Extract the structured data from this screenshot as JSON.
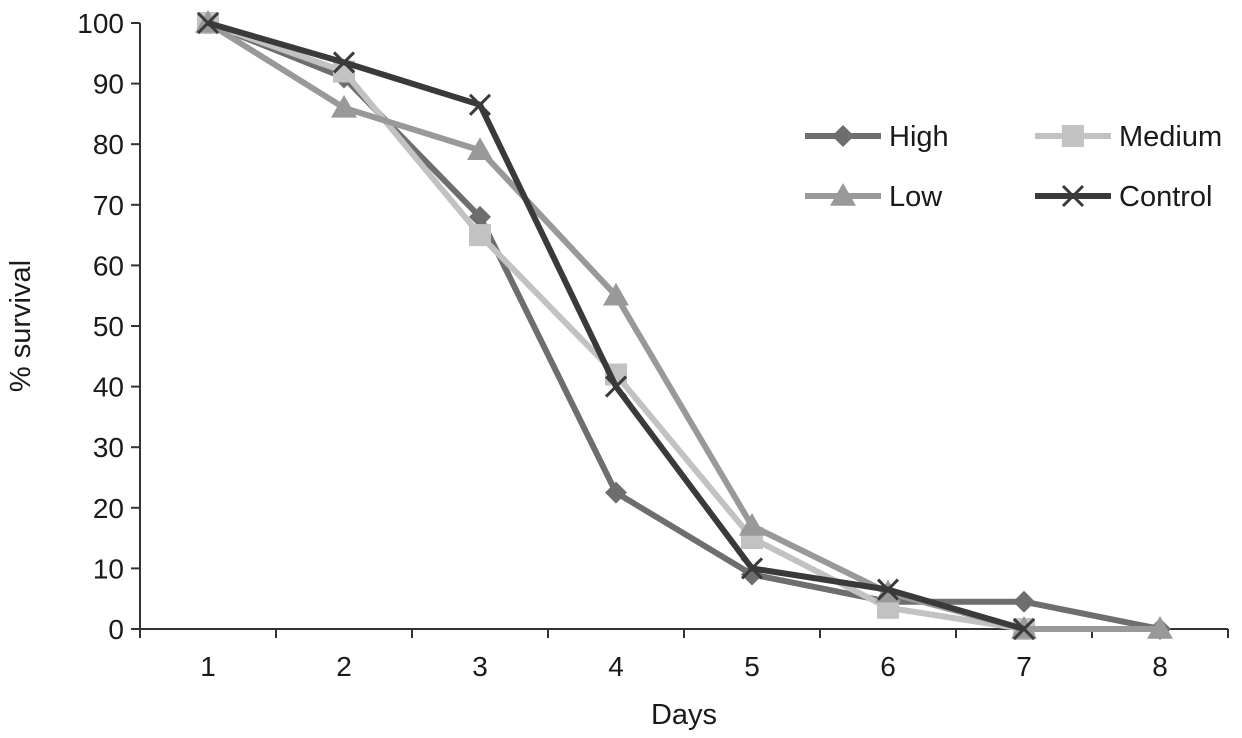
{
  "chart_data": {
    "type": "line",
    "title": "",
    "xlabel": "Days",
    "ylabel": "% survival",
    "x": [
      1,
      2,
      3,
      4,
      5,
      6,
      7,
      8
    ],
    "ylim": [
      0,
      100
    ],
    "yticks": [
      0,
      10,
      20,
      30,
      40,
      50,
      60,
      70,
      80,
      90,
      100
    ],
    "grid": false,
    "legend_position": "top-right",
    "series": [
      {
        "name": "High",
        "values": [
          100,
          91,
          68,
          22.5,
          9,
          4.5,
          4.5,
          0
        ],
        "color": "#6e6e6e",
        "marker": "diamond"
      },
      {
        "name": "Medium",
        "values": [
          100,
          92,
          65,
          42,
          15,
          3.5,
          0,
          null
        ],
        "color": "#c2c2c2",
        "marker": "square"
      },
      {
        "name": "Low",
        "values": [
          100,
          86,
          79,
          55,
          17,
          6,
          0,
          0
        ],
        "color": "#999999",
        "marker": "triangle"
      },
      {
        "name": "Control",
        "values": [
          100,
          93.5,
          86.5,
          40,
          10,
          6.5,
          0,
          null
        ],
        "color": "#3a3a3a",
        "marker": "x"
      }
    ]
  }
}
